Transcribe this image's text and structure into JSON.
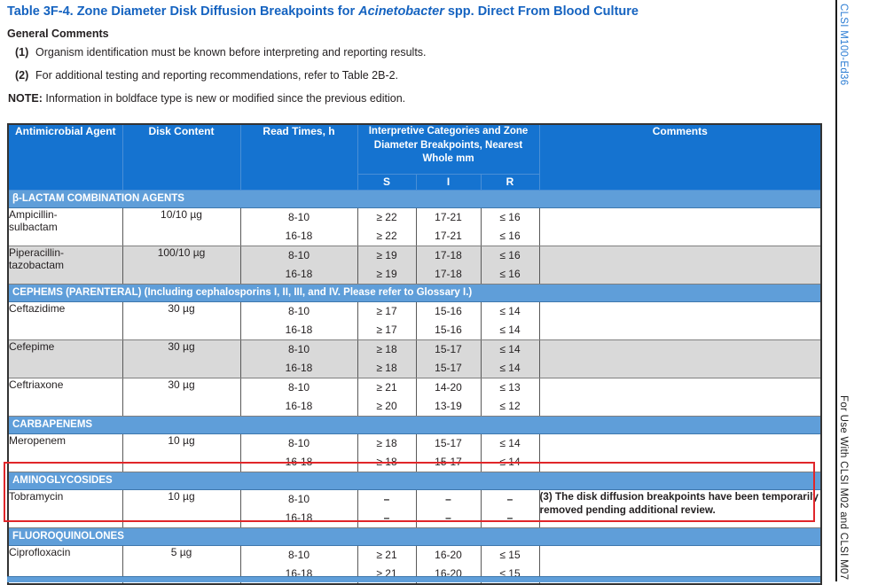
{
  "colors": {
    "title-blue": "#1563c0",
    "header-blue": "#1573d0",
    "section-blue": "#5f9ed9",
    "sir-blue": "#74abe0",
    "shaded-gray": "#d9d9d9",
    "highlight-red": "#e0262a",
    "sidebar-blue": "#2b7cd3",
    "text-dark": "#231f20"
  },
  "page": {
    "title_prefix": "Table 3F-4. Zone Diameter Disk Diffusion Breakpoints for ",
    "title_italic": "Acinetobacter",
    "title_suffix": " spp. Direct From Blood Culture",
    "general_comments_heading": "General Comments",
    "comments": [
      {
        "num": "(1)",
        "text": "Organism identification must be known before interpreting and reporting results."
      },
      {
        "num": "(2)",
        "text": "For additional testing and reporting recommendations, refer to Table 2B-2."
      }
    ],
    "note_label": "NOTE:",
    "note_text": " Information in boldface type is new or modified since the previous edition.",
    "sidebar_top": "CLSI M100-Ed36",
    "sidebar_bottom": "For Use With CLSI M02 and CLSI M07"
  },
  "table": {
    "header": {
      "col_agent": "Antimicrobial Agent",
      "col_disk": "Disk Content",
      "col_read": "Read Times, h",
      "group": "Interpretive Categories and Zone Diameter Breakpoints, Nearest Whole mm",
      "col_s": "S",
      "col_i": "I",
      "col_r": "R",
      "col_comments": "Comments"
    },
    "sections": [
      {
        "label": "β-LACTAM COMBINATION AGENTS",
        "highlighted": false,
        "rows": [
          {
            "agent_lines": [
              "Ampicillin-",
              "sulbactam"
            ],
            "disk": "10/10 µg",
            "shaded": false,
            "bold": false,
            "comment": "",
            "lines": [
              {
                "t": "8-10",
                "s": "≥ 22",
                "i": "17-21",
                "r": "≤ 16"
              },
              {
                "t": "16-18",
                "s": "≥ 22",
                "i": "17-21",
                "r": "≤ 16"
              }
            ]
          },
          {
            "agent_lines": [
              "Piperacillin-",
              "tazobactam"
            ],
            "disk": "100/10 µg",
            "shaded": true,
            "bold": false,
            "comment": "",
            "lines": [
              {
                "t": "8-10",
                "s": "≥ 19",
                "i": "17-18",
                "r": "≤ 16"
              },
              {
                "t": "16-18",
                "s": "≥ 19",
                "i": "17-18",
                "r": "≤ 16"
              }
            ]
          }
        ]
      },
      {
        "label": "CEPHEMS (PARENTERAL) (Including cephalosporins I, II, III, and IV. Please refer to Glossary I.)",
        "highlighted": false,
        "rows": [
          {
            "agent_lines": [
              "Ceftazidime"
            ],
            "disk": "30 µg",
            "shaded": false,
            "bold": false,
            "comment": "",
            "lines": [
              {
                "t": "8-10",
                "s": "≥ 17",
                "i": "15-16",
                "r": "≤ 14"
              },
              {
                "t": "16-18",
                "s": "≥ 17",
                "i": "15-16",
                "r": "≤ 14"
              }
            ]
          },
          {
            "agent_lines": [
              "Cefepime"
            ],
            "disk": "30 µg",
            "shaded": true,
            "bold": false,
            "comment": "",
            "lines": [
              {
                "t": "8-10",
                "s": "≥ 18",
                "i": "15-17",
                "r": "≤ 14"
              },
              {
                "t": "16-18",
                "s": "≥ 18",
                "i": "15-17",
                "r": "≤ 14"
              }
            ]
          },
          {
            "agent_lines": [
              "Ceftriaxone"
            ],
            "disk": "30 µg",
            "shaded": false,
            "bold": false,
            "comment": "",
            "lines": [
              {
                "t": "8-10",
                "s": "≥ 21",
                "i": "14-20",
                "r": "≤ 13"
              },
              {
                "t": "16-18",
                "s": "≥ 20",
                "i": "13-19",
                "r": "≤ 12"
              }
            ]
          }
        ]
      },
      {
        "label": "CARBAPENEMS",
        "highlighted": false,
        "rows": [
          {
            "agent_lines": [
              "Meropenem"
            ],
            "disk": "10 µg",
            "shaded": false,
            "bold": false,
            "comment": "",
            "lines": [
              {
                "t": "8-10",
                "s": "≥ 18",
                "i": "15-17",
                "r": "≤ 14"
              },
              {
                "t": "16-18",
                "s": "≥ 18",
                "i": "15-17",
                "r": "≤ 14"
              }
            ]
          }
        ]
      },
      {
        "label": "AMINOGLYCOSIDES",
        "highlighted": true,
        "rows": [
          {
            "agent_lines": [
              "Tobramycin"
            ],
            "disk": "10 µg",
            "shaded": false,
            "bold": true,
            "comment": "(3) The disk diffusion breakpoints have been temporarily removed pending additional review.",
            "lines": [
              {
                "t": "8-10",
                "s": "–",
                "i": "–",
                "r": "–"
              },
              {
                "t": "16-18",
                "s": "–",
                "i": "–",
                "r": "–"
              }
            ]
          }
        ]
      },
      {
        "label": "FLUOROQUINOLONES",
        "highlighted": false,
        "rows": [
          {
            "agent_lines": [
              "Ciprofloxacin"
            ],
            "disk": "5 µg",
            "shaded": false,
            "bold": false,
            "comment": "",
            "lines": [
              {
                "t": "8-10",
                "s": "≥ 21",
                "i": "16-20",
                "r": "≤ 15"
              },
              {
                "t": "16-18",
                "s": "≥ 21",
                "i": "16-20",
                "r": "≤ 15"
              }
            ]
          }
        ]
      }
    ]
  }
}
